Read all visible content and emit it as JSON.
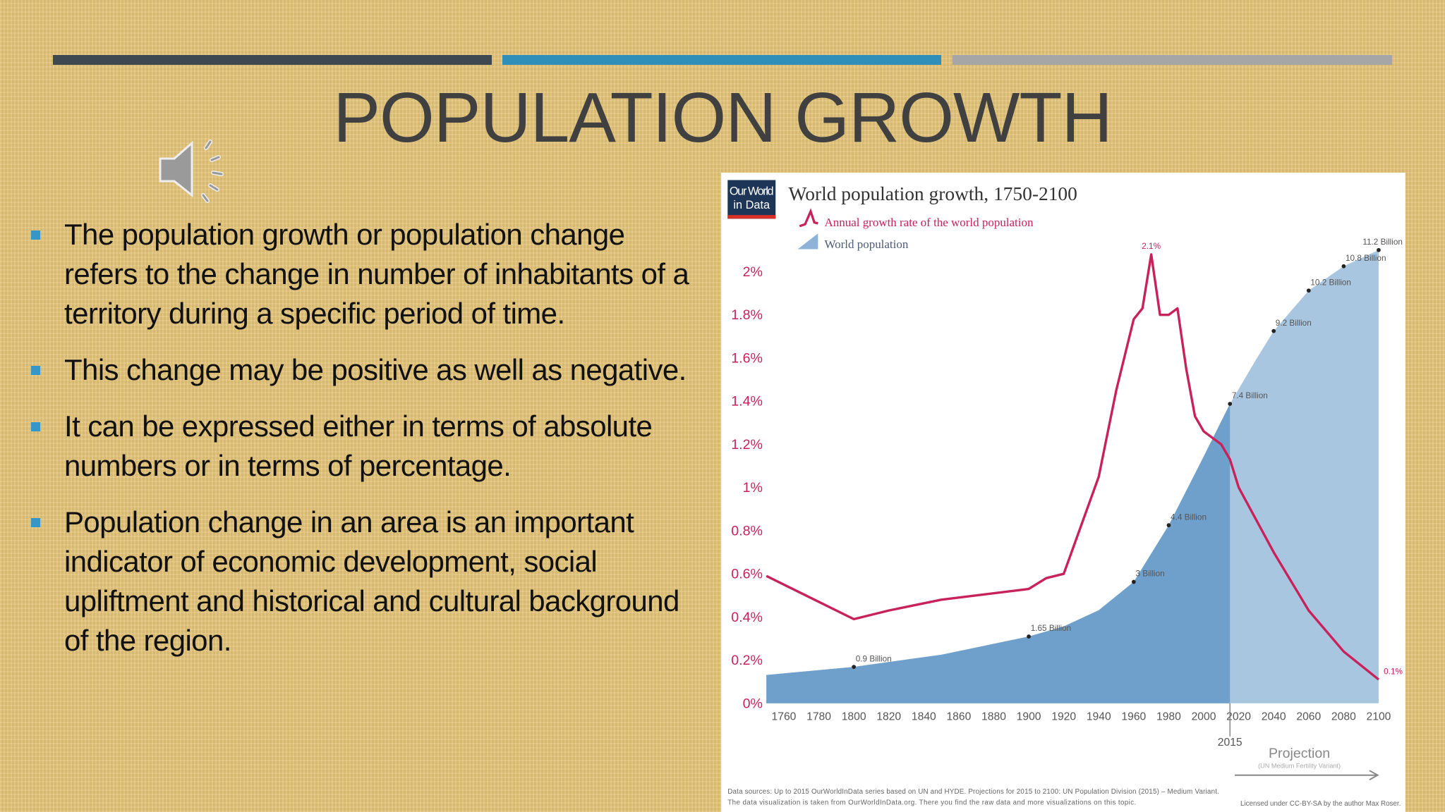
{
  "slide": {
    "title": "POPULATION GROWTH",
    "bullets": [
      "The population growth or population change refers to the change in number of inhabitants of a territory during a specific period of time.",
      "This change may be positive as well as negative.",
      "It can be expressed either in terms of absolute numbers or in terms of percentage.",
      "Population change in an area is an important indicator of economic development, social upliftment and historical and cultural background of the region."
    ]
  },
  "chart_data": {
    "type": "line",
    "logo": [
      "Our World",
      "in Data"
    ],
    "title": "World population growth, 1750-2100",
    "xlim": [
      1750,
      2100
    ],
    "xticks": [
      1760,
      1780,
      1800,
      1820,
      1840,
      1860,
      1880,
      1900,
      1920,
      1940,
      1960,
      1980,
      2000,
      2020,
      2040,
      2060,
      2080,
      2100
    ],
    "ylim": [
      0,
      2.1
    ],
    "yticks": [
      {
        "value": 0,
        "label": "0%"
      },
      {
        "value": 0.2,
        "label": "0.2%"
      },
      {
        "value": 0.4,
        "label": "0.4%"
      },
      {
        "value": 0.6,
        "label": "0.6%"
      },
      {
        "value": 0.8,
        "label": "0.8%"
      },
      {
        "value": 1,
        "label": "1%"
      },
      {
        "value": 1.2,
        "label": "1.2%"
      },
      {
        "value": 1.4,
        "label": "1.4%"
      },
      {
        "value": 1.6,
        "label": "1.6%"
      },
      {
        "value": 1.8,
        "label": "1.8%"
      },
      {
        "value": 2,
        "label": "2%"
      }
    ],
    "y2lim": [
      0,
      11.2
    ],
    "grid": false,
    "projection_from": 2015,
    "projection_label": "Projection",
    "projection_note": "(UN Medium Fertility Variant)",
    "series": [
      {
        "name": "World population",
        "type": "area",
        "axis": "y2",
        "color": "#6fa0cc",
        "projection_color": "#a9c6e0",
        "x": [
          1750,
          1800,
          1850,
          1900,
          1920,
          1940,
          1960,
          1970,
          1980,
          2000,
          2015,
          2030,
          2040,
          2060,
          2080,
          2100
        ],
        "values": [
          0.7,
          0.9,
          1.2,
          1.65,
          1.9,
          2.3,
          3,
          3.7,
          4.4,
          6.1,
          7.4,
          8.5,
          9.2,
          10.2,
          10.8,
          11.2
        ],
        "value_labels": [
          null,
          "0.9 Billion",
          null,
          "1.65 Billion",
          null,
          null,
          "3 Billion",
          null,
          "4.4 Billion",
          null,
          "7.4 Billion",
          null,
          "9.2 Billion",
          "10.2 Billion",
          "10.8 Billion",
          "11.2 Billion"
        ]
      },
      {
        "name": "Annual growth rate of the world population",
        "type": "line",
        "color": "#c8225a",
        "x": [
          1750,
          1800,
          1820,
          1850,
          1900,
          1910,
          1920,
          1940,
          1950,
          1960,
          1965,
          1970,
          1975,
          1980,
          1985,
          1990,
          1995,
          2000,
          2010,
          2015,
          2020,
          2040,
          2060,
          2080,
          2100
        ],
        "values": [
          0.59,
          0.39,
          0.43,
          0.48,
          0.53,
          0.58,
          0.6,
          1.05,
          1.45,
          1.78,
          1.83,
          2.08,
          1.8,
          1.8,
          1.83,
          1.55,
          1.33,
          1.26,
          1.2,
          1.13,
          1,
          0.7,
          0.43,
          0.24,
          0.11
        ],
        "value_labels": [
          null,
          null,
          null,
          null,
          null,
          null,
          null,
          null,
          null,
          null,
          null,
          "2.1%",
          null,
          null,
          null,
          null,
          null,
          null,
          null,
          null,
          null,
          null,
          null,
          null,
          "0.1%"
        ]
      }
    ],
    "sources": [
      "Data sources: Up to 2015 OurWorldInData series based on UN and HYDE. Projections for 2015 to 2100: UN Population Division (2015) – Medium Variant.",
      "The data visualization is taken from OurWorldInData.org. There you find the raw data and more visualizations on this topic."
    ],
    "license": "Licensed under CC-BY-SA by the author Max Roser."
  }
}
